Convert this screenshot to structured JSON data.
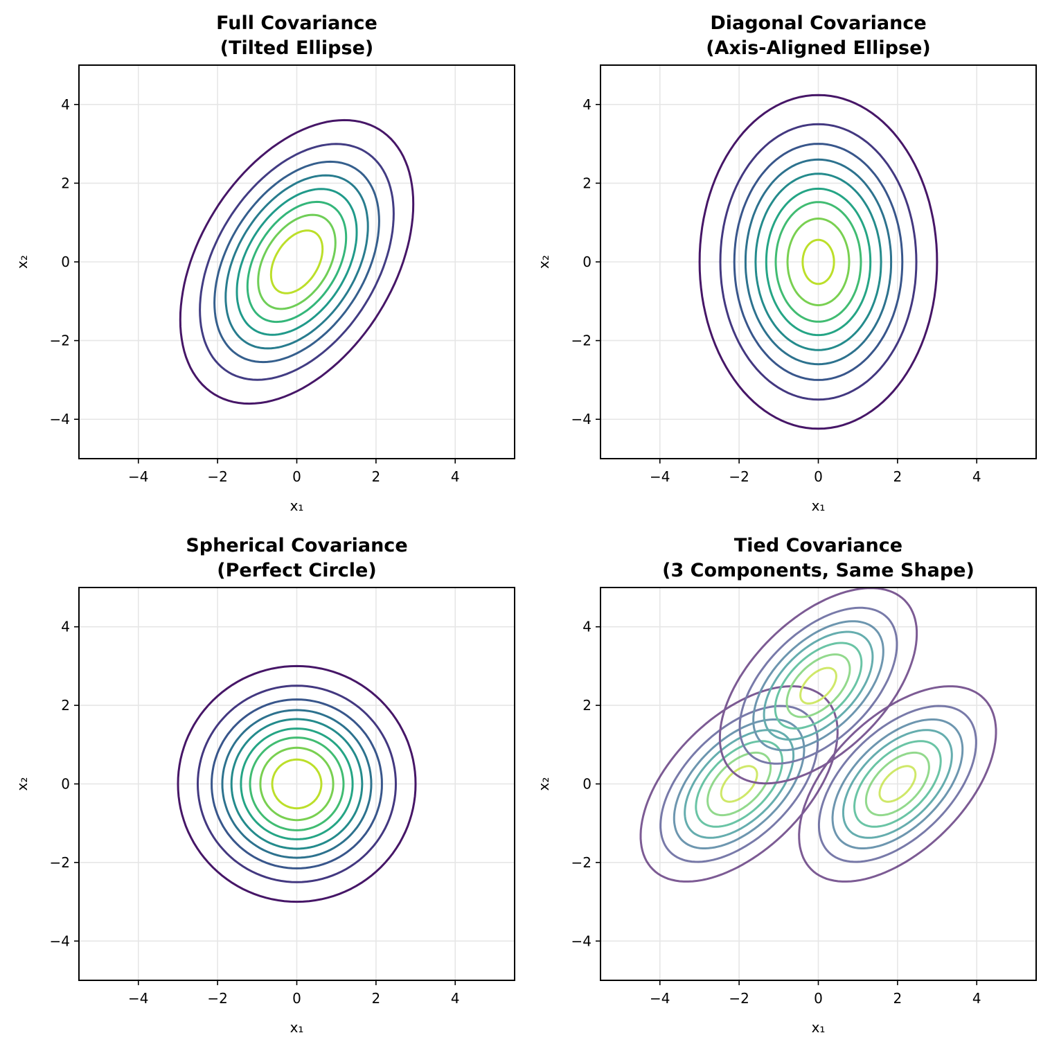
{
  "chart_data": [
    {
      "type": "contour",
      "title_line1": "Full Covariance",
      "title_line2": "(Tilted Ellipse)",
      "xlabel": "x₁",
      "ylabel": "x₂",
      "xlim": [
        -5.5,
        5.5
      ],
      "ylim": [
        -5,
        5
      ],
      "xticks": [
        -4,
        -2,
        0,
        2,
        4
      ],
      "yticks": [
        -4,
        -2,
        0,
        2,
        4
      ],
      "xtick_labels": [
        "−4",
        "−2",
        "0",
        "2",
        "4"
      ],
      "ytick_labels": [
        "−4",
        "−2",
        "0",
        "2",
        "4"
      ],
      "grid": true,
      "alpha": 1.0,
      "components": [
        {
          "mean": [
            0,
            0
          ],
          "covariance": [
            [
              2.0,
              1.0
            ],
            [
              1.0,
              3.0
            ]
          ]
        }
      ],
      "contour_mahalanobis_radii": [
        2.08,
        1.73,
        1.47,
        1.27,
        1.07,
        0.88,
        0.69,
        0.46
      ],
      "colormap": "viridis"
    },
    {
      "type": "contour",
      "title_line1": "Diagonal Covariance",
      "title_line2": "(Axis-Aligned Ellipse)",
      "xlabel": "x₁",
      "ylabel": "x₂",
      "xlim": [
        -5.5,
        5.5
      ],
      "ylim": [
        -5,
        5
      ],
      "xticks": [
        -4,
        -2,
        0,
        2,
        4
      ],
      "yticks": [
        -4,
        -2,
        0,
        2,
        4
      ],
      "xtick_labels": [
        "−4",
        "−2",
        "0",
        "2",
        "4"
      ],
      "ytick_labels": [
        "−4",
        "−2",
        "0",
        "2",
        "4"
      ],
      "grid": true,
      "alpha": 1.0,
      "components": [
        {
          "mean": [
            0,
            0
          ],
          "covariance": [
            [
              2.0,
              0.0
            ],
            [
              0.0,
              4.0
            ]
          ]
        }
      ],
      "contour_mahalanobis_radii": [
        2.12,
        1.75,
        1.5,
        1.3,
        1.12,
        0.93,
        0.76,
        0.55,
        0.28
      ],
      "colormap": "viridis"
    },
    {
      "type": "contour",
      "title_line1": "Spherical Covariance",
      "title_line2": "(Perfect Circle)",
      "xlabel": "x₁",
      "ylabel": "x₂",
      "xlim": [
        -5.5,
        5.5
      ],
      "ylim": [
        -5,
        5
      ],
      "xticks": [
        -4,
        -2,
        0,
        2,
        4
      ],
      "yticks": [
        -4,
        -2,
        0,
        2,
        4
      ],
      "xtick_labels": [
        "−4",
        "−2",
        "0",
        "2",
        "4"
      ],
      "ytick_labels": [
        "−4",
        "−2",
        "0",
        "2",
        "4"
      ],
      "grid": true,
      "alpha": 1.0,
      "components": [
        {
          "mean": [
            0,
            0
          ],
          "covariance": [
            [
              1.0,
              0.0
            ],
            [
              0.0,
              1.0
            ]
          ]
        }
      ],
      "contour_mahalanobis_radii": [
        3.0,
        2.5,
        2.15,
        1.88,
        1.65,
        1.41,
        1.18,
        0.92,
        0.62
      ],
      "colormap": "viridis"
    },
    {
      "type": "contour",
      "title_line1": "Tied Covariance",
      "title_line2": "(3 Components, Same Shape)",
      "xlabel": "x₁",
      "ylabel": "x₂",
      "xlim": [
        -5.5,
        5.5
      ],
      "ylim": [
        -5,
        5
      ],
      "xticks": [
        -4,
        -2,
        0,
        2,
        4
      ],
      "yticks": [
        -4,
        -2,
        0,
        2,
        4
      ],
      "xtick_labels": [
        "−4",
        "−2",
        "0",
        "2",
        "4"
      ],
      "ytick_labels": [
        "−4",
        "−2",
        "0",
        "2",
        "4"
      ],
      "grid": true,
      "alpha": 0.7,
      "components": [
        {
          "mean": [
            -2,
            0
          ],
          "covariance": [
            [
              1.5,
              0.8
            ],
            [
              0.8,
              1.5
            ]
          ]
        },
        {
          "mean": [
            0,
            2.5
          ],
          "covariance": [
            [
              1.5,
              0.8
            ],
            [
              0.8,
              1.5
            ]
          ]
        },
        {
          "mean": [
            2,
            0
          ],
          "covariance": [
            [
              1.5,
              0.8
            ],
            [
              0.8,
              1.5
            ]
          ]
        }
      ],
      "contour_mahalanobis_radii": [
        2.03,
        1.62,
        1.34,
        1.12,
        0.89,
        0.65,
        0.37
      ],
      "colormap": "viridis"
    }
  ],
  "colors": {
    "viridis_stops": [
      "#440154",
      "#482878",
      "#3e4989",
      "#31688e",
      "#26828e",
      "#1f9e89",
      "#35b779",
      "#6ece58",
      "#b5de2b",
      "#fde725"
    ],
    "grid": "#e6e6e6",
    "axis": "#000000"
  }
}
